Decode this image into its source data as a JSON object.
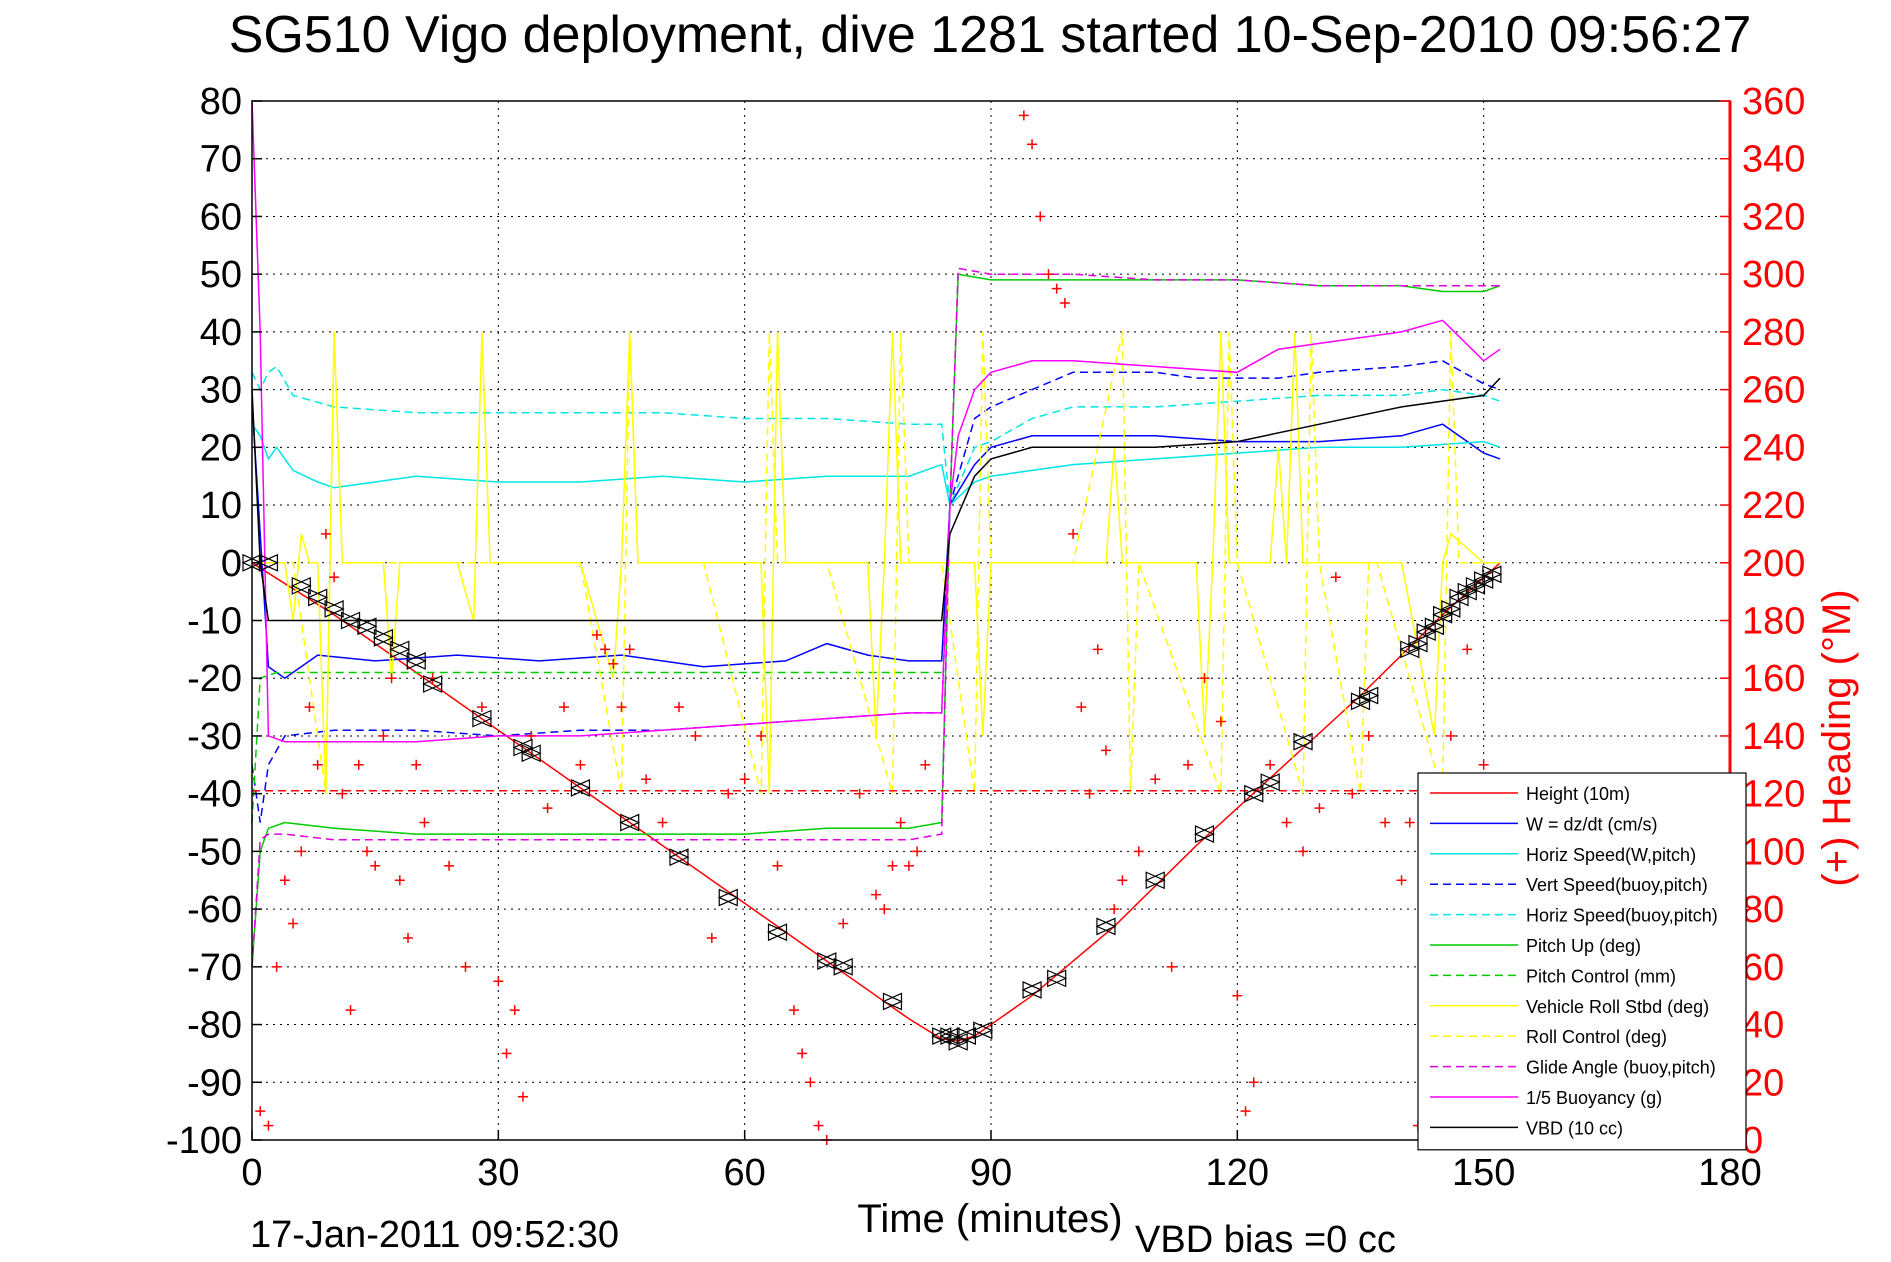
{
  "chart_data": {
    "type": "line",
    "title": "SG510 Vigo deployment, dive 1281 started 10-Sep-2010 09:56:27",
    "xlabel": "Time (minutes)",
    "ylabel_right": "(+) Heading (°M)",
    "footer_left": "17-Jan-2011 09:52:30",
    "footer_right": "VBD bias =0 cc",
    "xlim": [
      0,
      180
    ],
    "ylim": [
      -100,
      80
    ],
    "ylim_right": [
      0,
      360
    ],
    "x_ticks": [
      0,
      30,
      60,
      90,
      120,
      150,
      180
    ],
    "y_ticks": [
      80,
      70,
      60,
      50,
      40,
      30,
      20,
      10,
      0,
      -10,
      -20,
      -30,
      -40,
      -50,
      -60,
      -70,
      -80,
      -90,
      -100
    ],
    "y_ticks_right": [
      360,
      340,
      320,
      300,
      280,
      260,
      240,
      220,
      200,
      180,
      160,
      140,
      120,
      100,
      80,
      60,
      40,
      20,
      0
    ],
    "grid": true,
    "legend_position": "bottom-right",
    "colors": {
      "right_axis": "#ff0000"
    },
    "series": [
      {
        "name": "Height (10m)",
        "color": "#ff0000",
        "dash": "solid",
        "x": [
          0,
          10,
          20,
          30,
          40,
          50,
          60,
          70,
          80,
          84,
          86,
          88,
          95,
          105,
          115,
          125,
          135,
          145,
          152
        ],
        "y": [
          0,
          -9,
          -19,
          -29,
          -39,
          -49,
          -59,
          -69,
          -79,
          -82.5,
          -82.8,
          -82,
          -75,
          -63,
          -49,
          -36,
          -23,
          -9,
          0
        ]
      },
      {
        "name": "W = dz/dt (cm/s)",
        "color": "#0000ff",
        "dash": "solid",
        "x": [
          0,
          1,
          2,
          4,
          8,
          15,
          25,
          35,
          45,
          55,
          65,
          70,
          75,
          80,
          84,
          85,
          88,
          90,
          95,
          100,
          110,
          120,
          130,
          140,
          145,
          150,
          152
        ],
        "y": [
          28,
          5,
          -18,
          -20,
          -16,
          -17,
          -16,
          -17,
          -16,
          -18,
          -17,
          -14,
          -16,
          -17,
          -17,
          10,
          17,
          20,
          22,
          22,
          22,
          21,
          21,
          22,
          24,
          19,
          18
        ]
      },
      {
        "name": "Horiz Speed(W,pitch)",
        "color": "#00e5e5",
        "dash": "solid",
        "x": [
          0,
          1,
          2,
          3,
          5,
          8,
          10,
          15,
          20,
          30,
          40,
          50,
          60,
          70,
          80,
          84,
          85,
          88,
          90,
          95,
          100,
          110,
          120,
          130,
          140,
          150,
          152
        ],
        "y": [
          24,
          22,
          18,
          20,
          16,
          14,
          13,
          14,
          15,
          14,
          14,
          15,
          14,
          15,
          15,
          17,
          10,
          14,
          15,
          16,
          17,
          18,
          19,
          20,
          20,
          21,
          20
        ]
      },
      {
        "name": "Vert Speed(buoy,pitch)",
        "color": "#0000ff",
        "dash": "dashed",
        "x": [
          0,
          1,
          2,
          4,
          10,
          20,
          30,
          40,
          50,
          60,
          70,
          80,
          84,
          85,
          88,
          90,
          95,
          100,
          110,
          115,
          120,
          125,
          130,
          140,
          145,
          150,
          152
        ],
        "y": [
          -35,
          -45,
          -35,
          -30,
          -29,
          -29,
          -30,
          -29,
          -29,
          -28,
          -27,
          -26,
          -26,
          10,
          25,
          27,
          30,
          33,
          33,
          32,
          32,
          32,
          33,
          34,
          35,
          31,
          30
        ]
      },
      {
        "name": "Horiz Speed(buoy,pitch)",
        "color": "#00e5e5",
        "dash": "dashed",
        "x": [
          0,
          1,
          2,
          3,
          5,
          10,
          20,
          30,
          40,
          50,
          60,
          70,
          80,
          84,
          85,
          88,
          90,
          95,
          100,
          110,
          120,
          130,
          140,
          145,
          150,
          152
        ],
        "y": [
          33,
          30,
          33,
          34,
          29,
          27,
          26,
          26,
          26,
          26,
          25,
          25,
          24,
          24,
          10,
          20,
          21,
          25,
          27,
          27,
          28,
          29,
          29,
          30,
          29,
          28
        ]
      },
      {
        "name": "Pitch Up (deg)",
        "color": "#00cc00",
        "dash": "solid",
        "x": [
          0,
          1,
          2,
          4,
          10,
          20,
          30,
          40,
          50,
          60,
          70,
          80,
          84,
          85,
          86,
          90,
          95,
          100,
          110,
          120,
          130,
          140,
          145,
          150,
          152
        ],
        "y": [
          -70,
          -50,
          -46,
          -45,
          -46,
          -47,
          -47,
          -47,
          -47,
          -47,
          -46,
          -46,
          -45,
          10,
          50,
          49,
          49,
          49,
          49,
          49,
          48,
          48,
          47,
          47,
          48
        ]
      },
      {
        "name": "Pitch Control (mm)",
        "color": "#00cc00",
        "dash": "dashed",
        "x": [
          0,
          1,
          3,
          10,
          20,
          30,
          40,
          50,
          60,
          70,
          80,
          84
        ],
        "y": [
          -45,
          -20,
          -19,
          -19,
          -19,
          -19,
          -19,
          -19,
          -19,
          -19,
          -19,
          -19
        ]
      },
      {
        "name": "Vehicle Roll Stbd (deg)",
        "color": "#ffff00",
        "dash": "solid",
        "x": [
          0,
          2,
          4,
          5,
          6,
          7,
          8,
          9,
          10,
          11,
          12,
          16,
          17,
          18,
          25,
          27,
          28,
          29,
          31,
          40,
          44,
          45,
          46,
          47,
          48,
          55,
          62,
          63,
          64,
          65,
          66,
          75,
          76,
          77,
          78,
          79,
          80,
          84,
          86,
          88,
          89,
          90,
          91,
          100,
          104,
          105,
          106,
          107,
          108,
          115,
          116,
          117,
          118,
          119,
          120,
          124,
          125,
          126,
          127,
          128,
          135,
          140,
          144,
          145,
          146,
          150,
          152
        ],
        "y": [
          0,
          0,
          0,
          -10,
          5,
          0,
          0,
          -40,
          40,
          0,
          0,
          0,
          -20,
          0,
          0,
          -10,
          40,
          0,
          0,
          0,
          -20,
          0,
          40,
          0,
          0,
          0,
          0,
          -40,
          40,
          0,
          0,
          0,
          -30,
          0,
          40,
          0,
          0,
          0,
          0,
          0,
          -30,
          0,
          0,
          0,
          0,
          20,
          0,
          0,
          0,
          0,
          -30,
          0,
          40,
          0,
          0,
          0,
          20,
          0,
          40,
          0,
          0,
          0,
          -30,
          0,
          5,
          0,
          0
        ]
      },
      {
        "name": "Roll Control (deg)",
        "color": "#ffff00",
        "dash": "dashed",
        "x": [
          0,
          5,
          9,
          10,
          11,
          20,
          30,
          40,
          45,
          46,
          47,
          55,
          62,
          63,
          64,
          65,
          70,
          78,
          79,
          80,
          84,
          88,
          89,
          90,
          91,
          100,
          106,
          107,
          108,
          118,
          119,
          120,
          128,
          129,
          130,
          135,
          136,
          137,
          145,
          146,
          147,
          152
        ],
        "y": [
          0,
          0,
          -40,
          40,
          0,
          0,
          0,
          0,
          -40,
          40,
          0,
          0,
          -40,
          40,
          0,
          0,
          0,
          -40,
          40,
          0,
          0,
          -40,
          40,
          0,
          0,
          0,
          40,
          -40,
          0,
          -40,
          40,
          0,
          -40,
          40,
          0,
          -40,
          0,
          0,
          -40,
          40,
          0,
          0
        ]
      },
      {
        "name": "Glide Angle (buoy,pitch)",
        "color": "#e000e0",
        "dash": "dashed",
        "x": [
          0,
          1,
          2,
          4,
          10,
          20,
          30,
          40,
          50,
          60,
          70,
          80,
          84,
          85,
          86,
          90,
          100,
          110,
          120,
          130,
          140,
          150,
          152
        ],
        "y": [
          -70,
          -48,
          -47,
          -47,
          -48,
          -48,
          -48,
          -48,
          -48,
          -48,
          -48,
          -48,
          -47,
          10,
          51,
          50,
          50,
          49,
          49,
          48,
          48,
          48,
          48
        ]
      },
      {
        "name": "1/5 Buoyancy (g)",
        "color": "#ff00ff",
        "dash": "solid",
        "x": [
          0,
          1,
          2,
          4,
          10,
          20,
          30,
          40,
          50,
          60,
          70,
          80,
          84,
          85,
          86,
          88,
          90,
          95,
          100,
          110,
          120,
          125,
          130,
          140,
          145,
          150,
          152
        ],
        "y": [
          80,
          40,
          -30,
          -31,
          -31,
          -31,
          -30,
          -30,
          -29,
          -28,
          -27,
          -26,
          -26,
          10,
          22,
          30,
          33,
          35,
          35,
          34,
          33,
          37,
          38,
          40,
          42,
          35,
          37
        ]
      },
      {
        "name": "VBD (10 cc)",
        "color": "#000000",
        "dash": "solid",
        "x": [
          0,
          1,
          2,
          5,
          20,
          40,
          60,
          80,
          84,
          85,
          88,
          90,
          95,
          100,
          110,
          120,
          130,
          140,
          150,
          152
        ],
        "y": [
          30,
          0,
          -10,
          -10,
          -10,
          -10,
          -10,
          -10,
          -10,
          5,
          15,
          18,
          20,
          20,
          20,
          21,
          24,
          27,
          29,
          32
        ]
      },
      {
        "name": "",
        "color": "#ff0000",
        "dash": "dashed",
        "x": [
          0,
          180
        ],
        "y": [
          -39.5,
          -39.5
        ]
      }
    ],
    "heading_points": {
      "name": "(+) Heading",
      "color": "#ff0000",
      "x": [
        1,
        2,
        3,
        4,
        5,
        6,
        7,
        8,
        9,
        10,
        11,
        12,
        13,
        14,
        15,
        16,
        17,
        18,
        19,
        20,
        21,
        22,
        24,
        26,
        28,
        30,
        31,
        32,
        33,
        34,
        36,
        38,
        40,
        42,
        43,
        44,
        45,
        46,
        48,
        50,
        52,
        54,
        56,
        58,
        60,
        62,
        64,
        66,
        67,
        68,
        69,
        70,
        72,
        74,
        76,
        77,
        78,
        79,
        80,
        81,
        82,
        94,
        95,
        96,
        97,
        98,
        99,
        100,
        101,
        102,
        103,
        104,
        105,
        106,
        108,
        110,
        112,
        114,
        116,
        118,
        120,
        121,
        122,
        124,
        126,
        128,
        130,
        132,
        134,
        136,
        138,
        140,
        141,
        142,
        143,
        144,
        146,
        148,
        150
      ],
      "y": [
        10,
        5,
        60,
        90,
        75,
        100,
        150,
        130,
        210,
        195,
        120,
        45,
        130,
        100,
        95,
        140,
        160,
        90,
        70,
        130,
        110,
        160,
        95,
        60,
        150,
        55,
        30,
        45,
        15,
        140,
        115,
        150,
        130,
        175,
        170,
        165,
        150,
        170,
        125,
        110,
        150,
        140,
        70,
        120,
        125,
        140,
        95,
        45,
        30,
        20,
        5,
        0,
        75,
        120,
        85,
        80,
        95,
        110,
        95,
        100,
        130,
        355,
        345,
        320,
        300,
        295,
        290,
        210,
        150,
        120,
        170,
        135,
        80,
        90,
        100,
        125,
        60,
        130,
        160,
        145,
        50,
        10,
        20,
        130,
        110,
        100,
        115,
        195,
        120,
        140,
        110,
        90,
        110,
        5,
        60,
        120,
        140,
        170,
        130
      ]
    },
    "markers": {
      "shape": "triangle",
      "color": "#000000",
      "x": [
        0,
        2,
        6,
        8,
        10,
        12,
        14,
        16,
        18,
        20,
        22,
        28,
        33,
        34,
        40,
        46,
        52,
        58,
        64,
        70,
        72,
        78,
        84,
        85,
        86,
        87,
        89,
        95,
        98,
        104,
        110,
        116,
        122,
        124,
        128,
        135,
        136,
        141,
        142,
        143,
        144,
        145,
        146,
        147,
        148,
        149,
        150,
        151
      ],
      "y": [
        0,
        0,
        -4,
        -6,
        -8,
        -10,
        -11,
        -13,
        -15,
        -17,
        -21,
        -27,
        -32,
        -33,
        -39,
        -45,
        -51,
        -58,
        -64,
        -69,
        -70,
        -76,
        -82,
        -82,
        -83,
        -82,
        -81,
        -74,
        -72,
        -63,
        -55,
        -47,
        -40,
        -38,
        -31,
        -24,
        -23,
        -15,
        -14,
        -12,
        -11,
        -9,
        -8,
        -6,
        -5,
        -4,
        -3,
        -2
      ]
    }
  }
}
